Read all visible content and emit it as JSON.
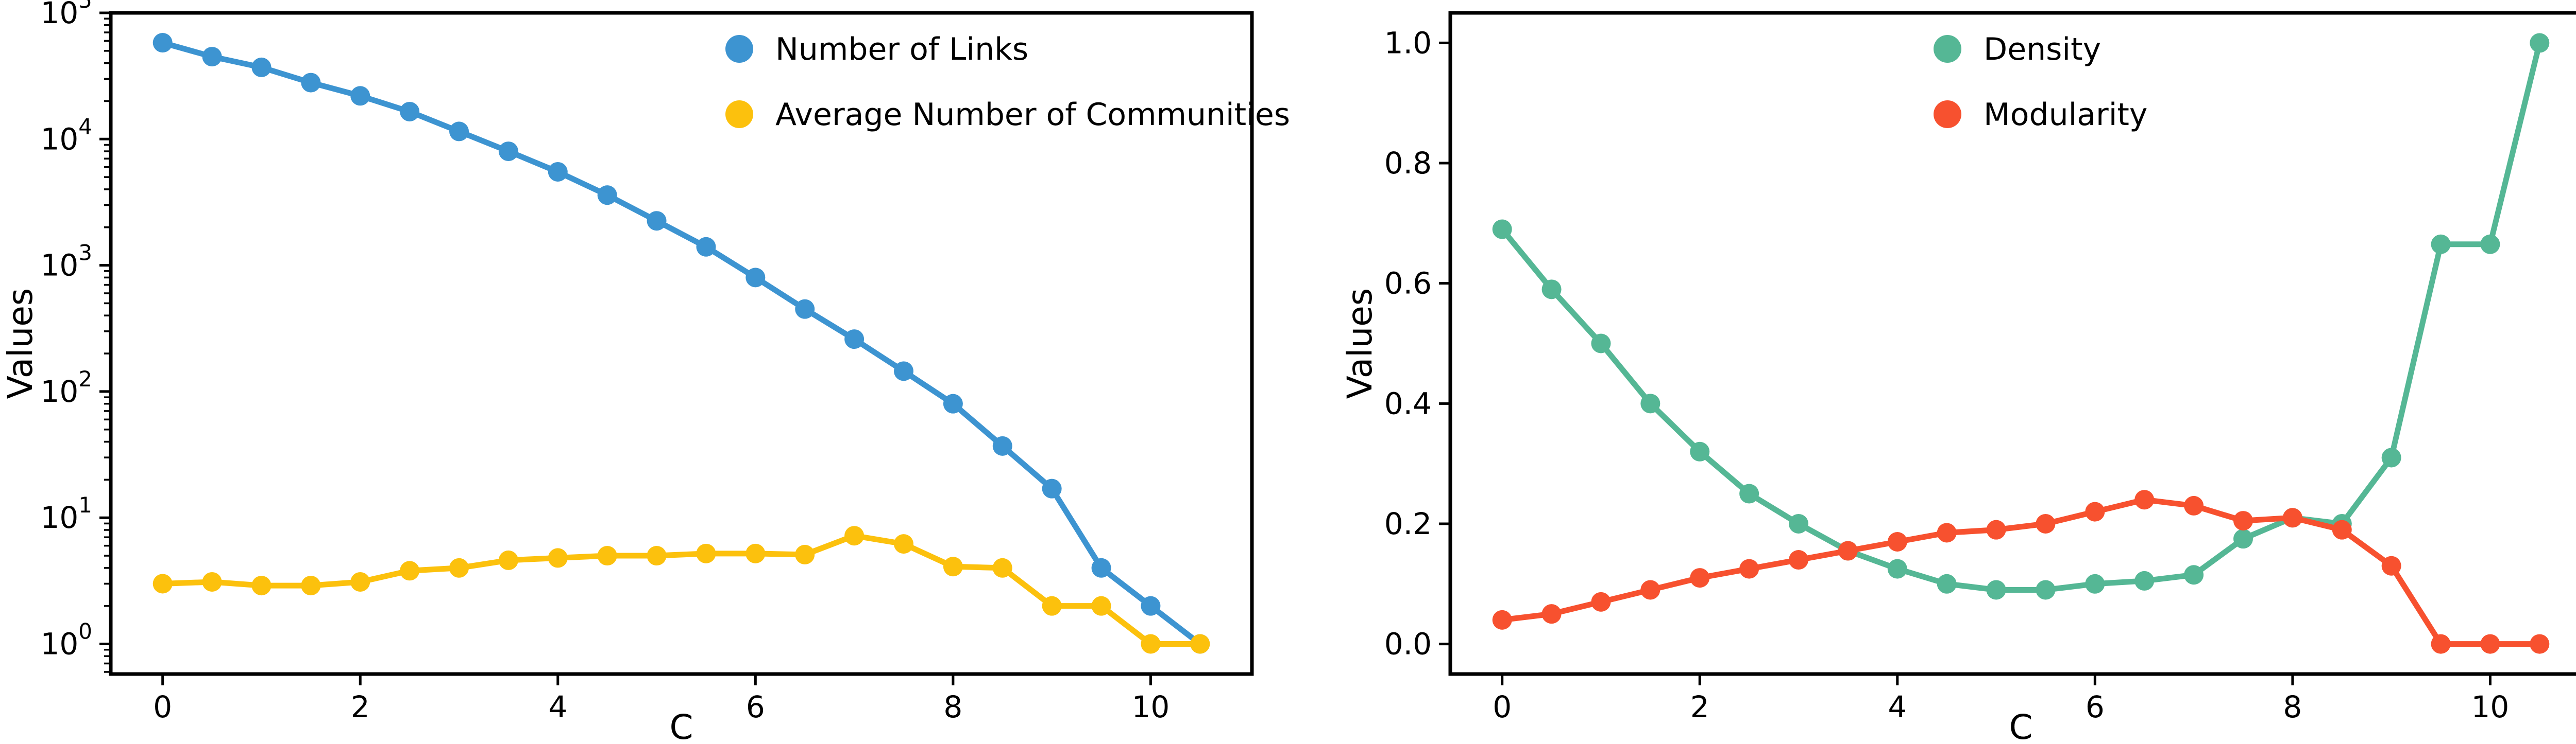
{
  "figure": {
    "background": "#ffffff",
    "text_color": "#000000"
  },
  "chart_data": [
    {
      "type": "line",
      "id": "links-communities",
      "title": "",
      "xlabel": "C",
      "ylabel": "Values",
      "y_scale": "log",
      "xlim": [
        -0.525,
        11.025
      ],
      "ylim_log_exponents": [
        -0.2385,
        5.0
      ],
      "x_ticks": [
        0,
        2,
        4,
        6,
        8,
        10
      ],
      "x_tick_labels": [
        "0",
        "2",
        "4",
        "6",
        "8",
        "10"
      ],
      "y_tick_exponents": [
        0,
        1,
        2,
        3,
        4,
        5
      ],
      "y_tick_base": "10",
      "grid": false,
      "legend_position": "upper right inside",
      "x": [
        0,
        0.5,
        1,
        1.5,
        2,
        2.5,
        3,
        3.5,
        4,
        4.5,
        5,
        5.5,
        6,
        6.5,
        7,
        7.5,
        8,
        8.5,
        9,
        9.5,
        10,
        10.5
      ],
      "series": [
        {
          "name": "Number of Links",
          "color": "#3D94D1",
          "values": [
            58000,
            45000,
            37000,
            28000,
            22000,
            16500,
            11500,
            8000,
            5500,
            3600,
            2250,
            1400,
            800,
            450,
            260,
            145,
            80,
            37,
            17,
            4,
            2,
            1
          ]
        },
        {
          "name": "Average Number of Communities",
          "color": "#FCC10D",
          "values": [
            3.0,
            3.1,
            2.9,
            2.9,
            3.1,
            3.8,
            4.0,
            4.6,
            4.8,
            5.0,
            5.0,
            5.2,
            5.2,
            5.1,
            7.2,
            6.2,
            4.1,
            4.0,
            2.0,
            2.0,
            1.0,
            1.0
          ]
        }
      ]
    },
    {
      "type": "line",
      "id": "density-modularity",
      "title": "",
      "xlabel": "C",
      "ylabel": "Values",
      "y_scale": "linear",
      "xlim": [
        -0.525,
        11.025
      ],
      "ylim": [
        -0.05,
        1.05
      ],
      "x_ticks": [
        0,
        2,
        4,
        6,
        8,
        10
      ],
      "x_tick_labels": [
        "0",
        "2",
        "4",
        "6",
        "8",
        "10"
      ],
      "y_ticks": [
        0.0,
        0.2,
        0.4,
        0.6,
        0.8,
        1.0
      ],
      "y_tick_labels": [
        "0.0",
        "0.2",
        "0.4",
        "0.6",
        "0.8",
        "1.0"
      ],
      "grid": false,
      "legend_position": "upper right inside",
      "x": [
        0,
        0.5,
        1,
        1.5,
        2,
        2.5,
        3,
        3.5,
        4,
        4.5,
        5,
        5.5,
        6,
        6.5,
        7,
        7.5,
        8,
        8.5,
        9,
        9.5,
        10,
        10.5
      ],
      "series": [
        {
          "name": "Density",
          "color": "#55B795",
          "values": [
            0.69,
            0.59,
            0.5,
            0.4,
            0.32,
            0.25,
            0.2,
            0.155,
            0.125,
            0.1,
            0.09,
            0.09,
            0.1,
            0.105,
            0.115,
            0.175,
            0.21,
            0.2,
            0.31,
            0.665,
            0.665,
            1.0
          ]
        },
        {
          "name": "Modularity",
          "color": "#F7512F",
          "values": [
            0.04,
            0.05,
            0.07,
            0.09,
            0.11,
            0.125,
            0.14,
            0.155,
            0.17,
            0.185,
            0.19,
            0.2,
            0.22,
            0.24,
            0.23,
            0.205,
            0.21,
            0.19,
            0.13,
            0.0,
            0.0,
            0.0
          ]
        }
      ]
    }
  ]
}
